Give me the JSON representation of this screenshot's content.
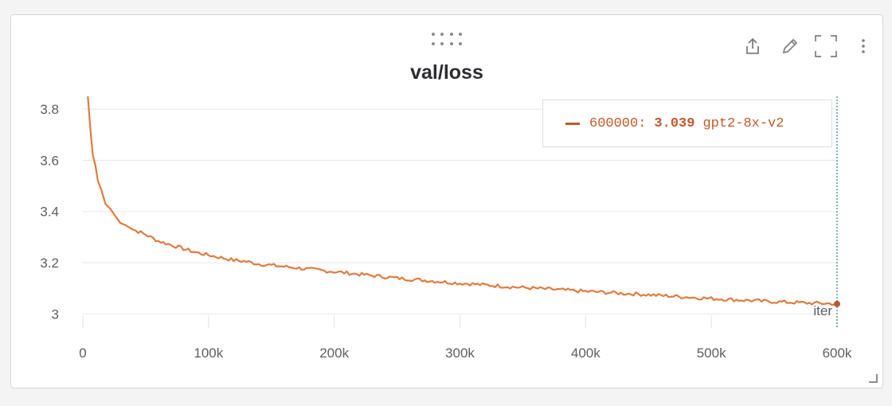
{
  "panel": {
    "icons": {
      "share": "share-icon",
      "edit": "pencil-icon",
      "fullscreen": "fullscreen-icon",
      "menu": "more-vertical-icon",
      "drag": "drag-handle-icon"
    }
  },
  "chart_data": {
    "type": "line",
    "title": "val/loss",
    "xlabel": "iter",
    "ylabel": "",
    "xlim": [
      0,
      600000
    ],
    "ylim": [
      2.97,
      3.85
    ],
    "x_ticks": [
      0,
      100000,
      200000,
      300000,
      400000,
      500000,
      600000
    ],
    "x_tick_labels": [
      "0",
      "100k",
      "200k",
      "300k",
      "400k",
      "500k",
      "600k"
    ],
    "y_ticks": [
      3.0,
      3.2,
      3.4,
      3.6,
      3.8
    ],
    "y_tick_labels": [
      "3",
      "3.2",
      "3.4",
      "3.6",
      "3.8"
    ],
    "grid": true,
    "legend_position": "top-right",
    "hover_x": 600000,
    "legend": {
      "step_label": "600000:",
      "value": "3.039",
      "name": "gpt2-8x-v2"
    },
    "series": [
      {
        "name": "gpt2-8x-v2",
        "color": "#e07b3f",
        "x": [
          4000,
          6000,
          8000,
          10000,
          12000,
          15000,
          18000,
          22000,
          26000,
          30000,
          34000,
          40000,
          50000,
          60000,
          70000,
          80000,
          90000,
          100000,
          110000,
          120000,
          130000,
          140000,
          150000,
          160000,
          170000,
          180000,
          190000,
          200000,
          210000,
          220000,
          230000,
          240000,
          250000,
          260000,
          270000,
          280000,
          290000,
          300000,
          310000,
          320000,
          330000,
          340000,
          350000,
          360000,
          370000,
          380000,
          390000,
          400000,
          410000,
          420000,
          430000,
          440000,
          450000,
          460000,
          470000,
          480000,
          490000,
          500000,
          510000,
          520000,
          530000,
          540000,
          550000,
          560000,
          570000,
          580000,
          590000,
          600000
        ],
        "y": [
          3.85,
          3.72,
          3.62,
          3.58,
          3.52,
          3.48,
          3.43,
          3.41,
          3.38,
          3.36,
          3.35,
          3.33,
          3.31,
          3.285,
          3.27,
          3.255,
          3.24,
          3.23,
          3.22,
          3.21,
          3.205,
          3.195,
          3.19,
          3.185,
          3.18,
          3.175,
          3.17,
          3.165,
          3.16,
          3.155,
          3.15,
          3.145,
          3.14,
          3.136,
          3.132,
          3.128,
          3.124,
          3.12,
          3.117,
          3.113,
          3.11,
          3.106,
          3.103,
          3.1,
          3.097,
          3.094,
          3.091,
          3.088,
          3.086,
          3.083,
          3.08,
          3.078,
          3.075,
          3.072,
          3.069,
          3.066,
          3.063,
          3.06,
          3.058,
          3.055,
          3.053,
          3.05,
          3.048,
          3.046,
          3.044,
          3.042,
          3.041,
          3.039
        ]
      }
    ]
  }
}
